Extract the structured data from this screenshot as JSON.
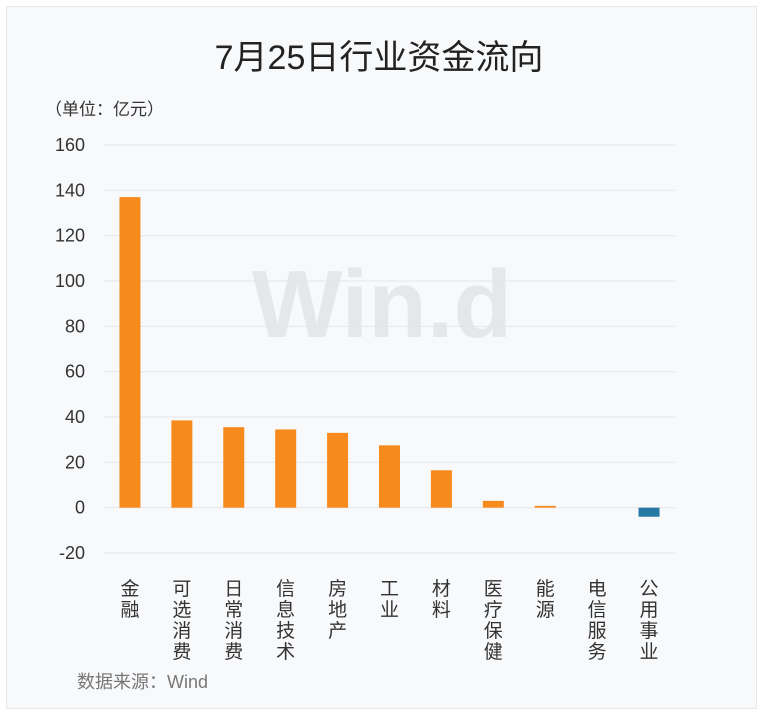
{
  "chart_data": {
    "type": "bar",
    "title": "7月25日行业资金流向",
    "unit_label": "（单位：亿元）",
    "categories": [
      "金融",
      "可选消费",
      "日常消费",
      "信息技术",
      "房地产",
      "工业",
      "材料",
      "医疗保健",
      "能源",
      "电信服务",
      "公用事业"
    ],
    "values": [
      137,
      38.5,
      35.5,
      34.5,
      33,
      27.5,
      16.5,
      3,
      0.8,
      0,
      -4
    ],
    "yticks": [
      -20,
      0,
      20,
      40,
      60,
      80,
      100,
      120,
      140,
      160
    ],
    "ylim": [
      -20,
      160
    ],
    "grid": true,
    "colors": {
      "positive": "#f68a1d",
      "negative": "#2579a3"
    },
    "watermark": "Win.d",
    "source": "数据来源：Wind"
  }
}
